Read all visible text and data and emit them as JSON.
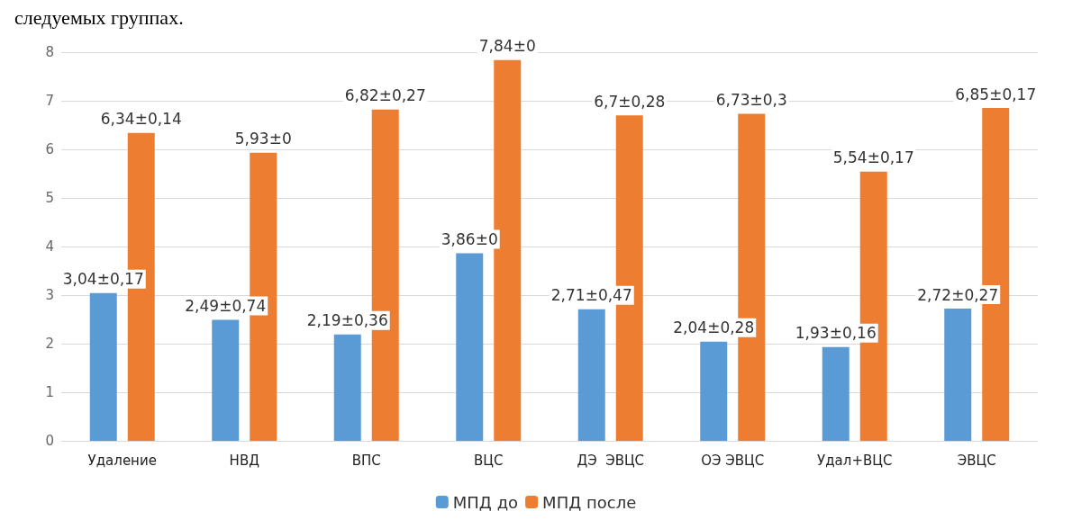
{
  "chart_data": {
    "type": "bar",
    "annotations": [
      "следуемых группах."
    ],
    "categories": [
      "Удаление",
      "НВД",
      "ВПС",
      "ВЦС",
      "ДЭ  ЭВЦС",
      "ОЭ ЭВЦС",
      "Удал+ВЦС",
      "ЭВЦС"
    ],
    "series": [
      {
        "name": "МПД до",
        "color": "#5b9bd5",
        "values": [
          3.04,
          2.49,
          2.19,
          3.86,
          2.71,
          2.04,
          1.93,
          2.72
        ],
        "value_labels": [
          "3,04±0,17",
          "2,49±0,74",
          "2,19±0,36",
          "3,86±0",
          "2,71±0,47",
          "2,04±0,28",
          "1,93±0,16",
          "2,72±0,27"
        ]
      },
      {
        "name": "МПД после",
        "color": "#ed7d31",
        "values": [
          6.34,
          5.93,
          6.82,
          7.84,
          6.7,
          6.73,
          5.54,
          6.85
        ],
        "value_labels": [
          "6,34±0,14",
          "5,93±0",
          "6,82±0,27",
          "7,84±0",
          "6,7±0,28",
          "6,73±0,3",
          "5,54±0,17",
          "6,85±0,17"
        ]
      }
    ],
    "ylim": [
      0,
      8
    ],
    "yticks": [
      0,
      1,
      2,
      3,
      4,
      5,
      6,
      7,
      8
    ],
    "grid": "y",
    "legend": "bottom"
  }
}
